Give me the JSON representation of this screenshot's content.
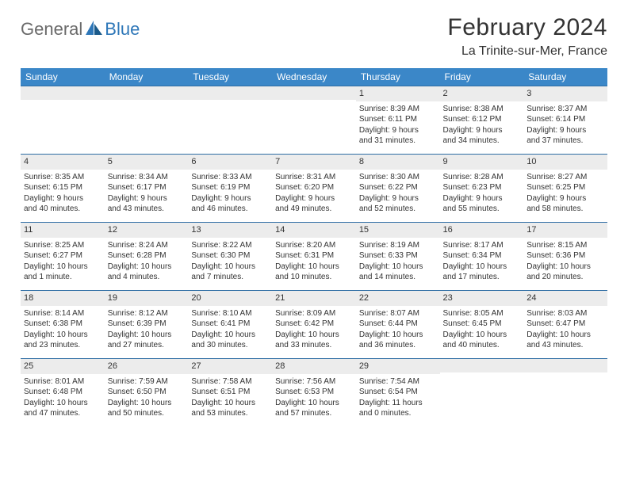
{
  "brand": {
    "general": "General",
    "blue": "Blue"
  },
  "title": "February 2024",
  "location": "La Trinite-sur-Mer, France",
  "headers": [
    "Sunday",
    "Monday",
    "Tuesday",
    "Wednesday",
    "Thursday",
    "Friday",
    "Saturday"
  ],
  "colors": {
    "headerBg": "#3b87c8",
    "headerText": "#ffffff",
    "dayNumBg": "#ececec",
    "rowBorder": "#2e6da4",
    "logoGray": "#6a6a6a",
    "logoBlue": "#2e77b8"
  },
  "weeks": [
    [
      null,
      null,
      null,
      null,
      {
        "n": "1",
        "sr": "Sunrise: 8:39 AM",
        "ss": "Sunset: 6:11 PM",
        "d1": "Daylight: 9 hours",
        "d2": "and 31 minutes."
      },
      {
        "n": "2",
        "sr": "Sunrise: 8:38 AM",
        "ss": "Sunset: 6:12 PM",
        "d1": "Daylight: 9 hours",
        "d2": "and 34 minutes."
      },
      {
        "n": "3",
        "sr": "Sunrise: 8:37 AM",
        "ss": "Sunset: 6:14 PM",
        "d1": "Daylight: 9 hours",
        "d2": "and 37 minutes."
      }
    ],
    [
      {
        "n": "4",
        "sr": "Sunrise: 8:35 AM",
        "ss": "Sunset: 6:15 PM",
        "d1": "Daylight: 9 hours",
        "d2": "and 40 minutes."
      },
      {
        "n": "5",
        "sr": "Sunrise: 8:34 AM",
        "ss": "Sunset: 6:17 PM",
        "d1": "Daylight: 9 hours",
        "d2": "and 43 minutes."
      },
      {
        "n": "6",
        "sr": "Sunrise: 8:33 AM",
        "ss": "Sunset: 6:19 PM",
        "d1": "Daylight: 9 hours",
        "d2": "and 46 minutes."
      },
      {
        "n": "7",
        "sr": "Sunrise: 8:31 AM",
        "ss": "Sunset: 6:20 PM",
        "d1": "Daylight: 9 hours",
        "d2": "and 49 minutes."
      },
      {
        "n": "8",
        "sr": "Sunrise: 8:30 AM",
        "ss": "Sunset: 6:22 PM",
        "d1": "Daylight: 9 hours",
        "d2": "and 52 minutes."
      },
      {
        "n": "9",
        "sr": "Sunrise: 8:28 AM",
        "ss": "Sunset: 6:23 PM",
        "d1": "Daylight: 9 hours",
        "d2": "and 55 minutes."
      },
      {
        "n": "10",
        "sr": "Sunrise: 8:27 AM",
        "ss": "Sunset: 6:25 PM",
        "d1": "Daylight: 9 hours",
        "d2": "and 58 minutes."
      }
    ],
    [
      {
        "n": "11",
        "sr": "Sunrise: 8:25 AM",
        "ss": "Sunset: 6:27 PM",
        "d1": "Daylight: 10 hours",
        "d2": "and 1 minute."
      },
      {
        "n": "12",
        "sr": "Sunrise: 8:24 AM",
        "ss": "Sunset: 6:28 PM",
        "d1": "Daylight: 10 hours",
        "d2": "and 4 minutes."
      },
      {
        "n": "13",
        "sr": "Sunrise: 8:22 AM",
        "ss": "Sunset: 6:30 PM",
        "d1": "Daylight: 10 hours",
        "d2": "and 7 minutes."
      },
      {
        "n": "14",
        "sr": "Sunrise: 8:20 AM",
        "ss": "Sunset: 6:31 PM",
        "d1": "Daylight: 10 hours",
        "d2": "and 10 minutes."
      },
      {
        "n": "15",
        "sr": "Sunrise: 8:19 AM",
        "ss": "Sunset: 6:33 PM",
        "d1": "Daylight: 10 hours",
        "d2": "and 14 minutes."
      },
      {
        "n": "16",
        "sr": "Sunrise: 8:17 AM",
        "ss": "Sunset: 6:34 PM",
        "d1": "Daylight: 10 hours",
        "d2": "and 17 minutes."
      },
      {
        "n": "17",
        "sr": "Sunrise: 8:15 AM",
        "ss": "Sunset: 6:36 PM",
        "d1": "Daylight: 10 hours",
        "d2": "and 20 minutes."
      }
    ],
    [
      {
        "n": "18",
        "sr": "Sunrise: 8:14 AM",
        "ss": "Sunset: 6:38 PM",
        "d1": "Daylight: 10 hours",
        "d2": "and 23 minutes."
      },
      {
        "n": "19",
        "sr": "Sunrise: 8:12 AM",
        "ss": "Sunset: 6:39 PM",
        "d1": "Daylight: 10 hours",
        "d2": "and 27 minutes."
      },
      {
        "n": "20",
        "sr": "Sunrise: 8:10 AM",
        "ss": "Sunset: 6:41 PM",
        "d1": "Daylight: 10 hours",
        "d2": "and 30 minutes."
      },
      {
        "n": "21",
        "sr": "Sunrise: 8:09 AM",
        "ss": "Sunset: 6:42 PM",
        "d1": "Daylight: 10 hours",
        "d2": "and 33 minutes."
      },
      {
        "n": "22",
        "sr": "Sunrise: 8:07 AM",
        "ss": "Sunset: 6:44 PM",
        "d1": "Daylight: 10 hours",
        "d2": "and 36 minutes."
      },
      {
        "n": "23",
        "sr": "Sunrise: 8:05 AM",
        "ss": "Sunset: 6:45 PM",
        "d1": "Daylight: 10 hours",
        "d2": "and 40 minutes."
      },
      {
        "n": "24",
        "sr": "Sunrise: 8:03 AM",
        "ss": "Sunset: 6:47 PM",
        "d1": "Daylight: 10 hours",
        "d2": "and 43 minutes."
      }
    ],
    [
      {
        "n": "25",
        "sr": "Sunrise: 8:01 AM",
        "ss": "Sunset: 6:48 PM",
        "d1": "Daylight: 10 hours",
        "d2": "and 47 minutes."
      },
      {
        "n": "26",
        "sr": "Sunrise: 7:59 AM",
        "ss": "Sunset: 6:50 PM",
        "d1": "Daylight: 10 hours",
        "d2": "and 50 minutes."
      },
      {
        "n": "27",
        "sr": "Sunrise: 7:58 AM",
        "ss": "Sunset: 6:51 PM",
        "d1": "Daylight: 10 hours",
        "d2": "and 53 minutes."
      },
      {
        "n": "28",
        "sr": "Sunrise: 7:56 AM",
        "ss": "Sunset: 6:53 PM",
        "d1": "Daylight: 10 hours",
        "d2": "and 57 minutes."
      },
      {
        "n": "29",
        "sr": "Sunrise: 7:54 AM",
        "ss": "Sunset: 6:54 PM",
        "d1": "Daylight: 11 hours",
        "d2": "and 0 minutes."
      },
      null,
      null
    ]
  ]
}
